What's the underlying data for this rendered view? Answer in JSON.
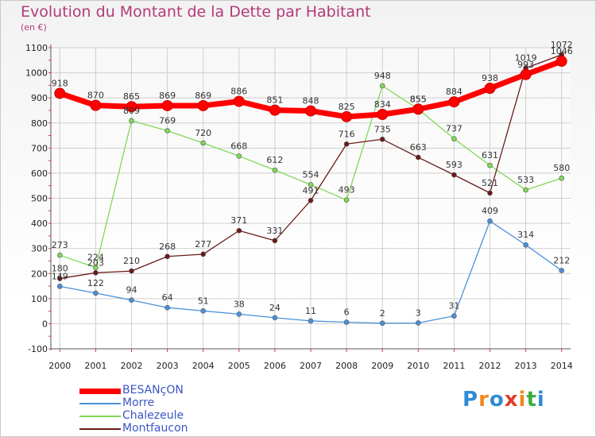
{
  "title": "Evolution du Montant de la Dette par Habitant",
  "unit": "(en €)",
  "chart_data": {
    "type": "line",
    "x": [
      "2000",
      "2001",
      "2002",
      "2003",
      "2004",
      "2005",
      "2006",
      "2007",
      "2008",
      "2009",
      "2010",
      "2011",
      "2012",
      "2013",
      "2014"
    ],
    "ylim": [
      -100,
      1100
    ],
    "yticks": [
      -100,
      0,
      100,
      200,
      300,
      400,
      500,
      600,
      700,
      800,
      900,
      1000,
      1100
    ],
    "grid": true,
    "legend_position": "bottom-left",
    "series": [
      {
        "name": "BESANçON",
        "color": "#ff0000",
        "values": [
          918,
          870,
          865,
          869,
          869,
          886,
          851,
          848,
          825,
          834,
          855,
          884,
          938,
          993,
          1046
        ]
      },
      {
        "name": "Morre",
        "color": "#4a90d9",
        "values": [
          149,
          122,
          94,
          64,
          51,
          38,
          24,
          11,
          6,
          2,
          3,
          31,
          409,
          314,
          212
        ]
      },
      {
        "name": "Chalezeule",
        "color": "#7ed957",
        "values": [
          273,
          224,
          809,
          769,
          720,
          668,
          612,
          554,
          493,
          948,
          855,
          737,
          631,
          533,
          580
        ]
      },
      {
        "name": "Montfaucon",
        "color": "#6b1a1a",
        "values": [
          180,
          203,
          210,
          268,
          277,
          371,
          331,
          491,
          716,
          735,
          663,
          593,
          521,
          1019,
          1072
        ]
      }
    ]
  },
  "logo": {
    "letters": [
      {
        "ch": "P",
        "color": "#2e8bd6"
      },
      {
        "ch": "r",
        "color": "#f08a1c"
      },
      {
        "ch": "o",
        "color": "#2e8bd6"
      },
      {
        "ch": "x",
        "color": "#e23c2a"
      },
      {
        "ch": "i",
        "color": "#f08a1c"
      },
      {
        "ch": "t",
        "color": "#3bab3b"
      },
      {
        "ch": "i",
        "color": "#2e8bd6"
      }
    ]
  }
}
